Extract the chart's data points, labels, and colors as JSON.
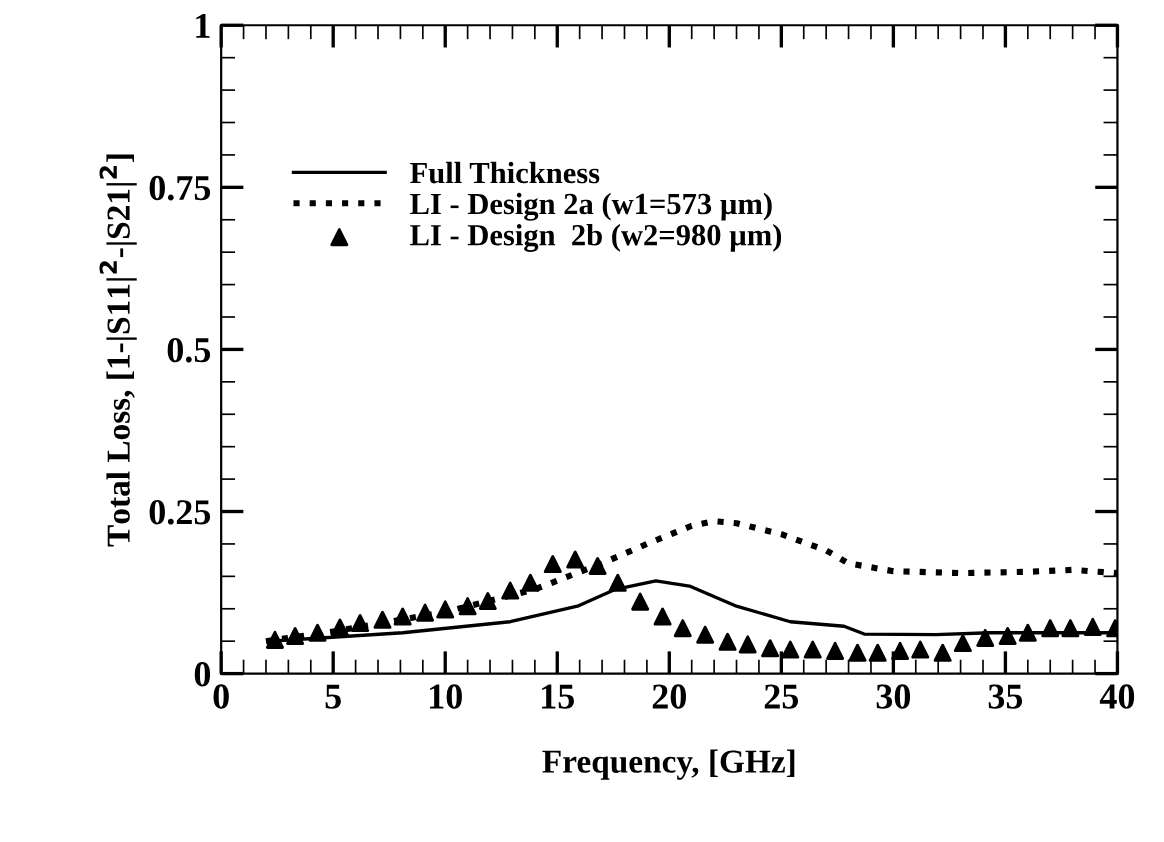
{
  "chart_data": {
    "type": "line",
    "xlabel": "Frequency, [GHz]",
    "ylabel": "Total Loss, [1-|S11|$^{2}$-|S21|$^{2}$]",
    "xlim": [
      0,
      40
    ],
    "ylim": [
      0,
      1
    ],
    "xticks": [
      0,
      5,
      10,
      15,
      20,
      25,
      30,
      35,
      40
    ],
    "yticks": [
      0,
      0.25,
      0.5,
      0.75,
      1
    ],
    "grid": false,
    "legend": "center left",
    "series": [
      {
        "name": "Full Thickness",
        "color": "#000000",
        "line_style": "solid",
        "marker": "none",
        "x": [
          2.2,
          8.1,
          12.9,
          15.9,
          17.6,
          19.4,
          20.9,
          23,
          25.4,
          27.8,
          28.7,
          31.9,
          34.3,
          40
        ],
        "values": [
          0.05,
          0.063,
          0.08,
          0.104,
          0.13,
          0.143,
          0.135,
          0.104,
          0.08,
          0.073,
          0.061,
          0.06,
          0.063,
          0.063
        ]
      },
      {
        "name": "LI - Design 2a (w1=573 µm)",
        "color": "#000000",
        "line_style": "dotted",
        "marker": "none",
        "x": [
          2,
          5,
          10,
          14,
          17,
          19,
          21,
          22,
          23,
          25,
          27,
          28,
          30,
          33,
          36,
          38,
          40
        ],
        "values": [
          0.05,
          0.065,
          0.095,
          0.13,
          0.17,
          0.2,
          0.228,
          0.235,
          0.232,
          0.215,
          0.19,
          0.17,
          0.158,
          0.155,
          0.157,
          0.16,
          0.155
        ]
      },
      {
        "name": "LI - Design  2b (w2=980 µm)",
        "color": "#000000",
        "type": "scatter",
        "marker": "triangle",
        "x": [
          2.4,
          3.3,
          4.3,
          5.3,
          6.2,
          7.2,
          8.1,
          9.1,
          10.0,
          11.0,
          11.9,
          12.9,
          13.8,
          14.8,
          15.8,
          16.8,
          17.7,
          18.7,
          19.7,
          20.6,
          21.6,
          22.6,
          23.5,
          24.5,
          25.4,
          26.4,
          27.4,
          28.4,
          29.3,
          30.3,
          31.2,
          32.2,
          33.1,
          34.1,
          35.1,
          36.0,
          37.0,
          37.9,
          38.9,
          39.9
        ],
        "values": [
          0.052,
          0.058,
          0.063,
          0.071,
          0.078,
          0.083,
          0.088,
          0.094,
          0.099,
          0.104,
          0.112,
          0.128,
          0.14,
          0.169,
          0.176,
          0.166,
          0.14,
          0.111,
          0.088,
          0.07,
          0.06,
          0.049,
          0.045,
          0.039,
          0.037,
          0.037,
          0.035,
          0.032,
          0.032,
          0.035,
          0.037,
          0.032,
          0.047,
          0.055,
          0.058,
          0.063,
          0.07,
          0.07,
          0.072,
          0.07
        ]
      }
    ]
  }
}
